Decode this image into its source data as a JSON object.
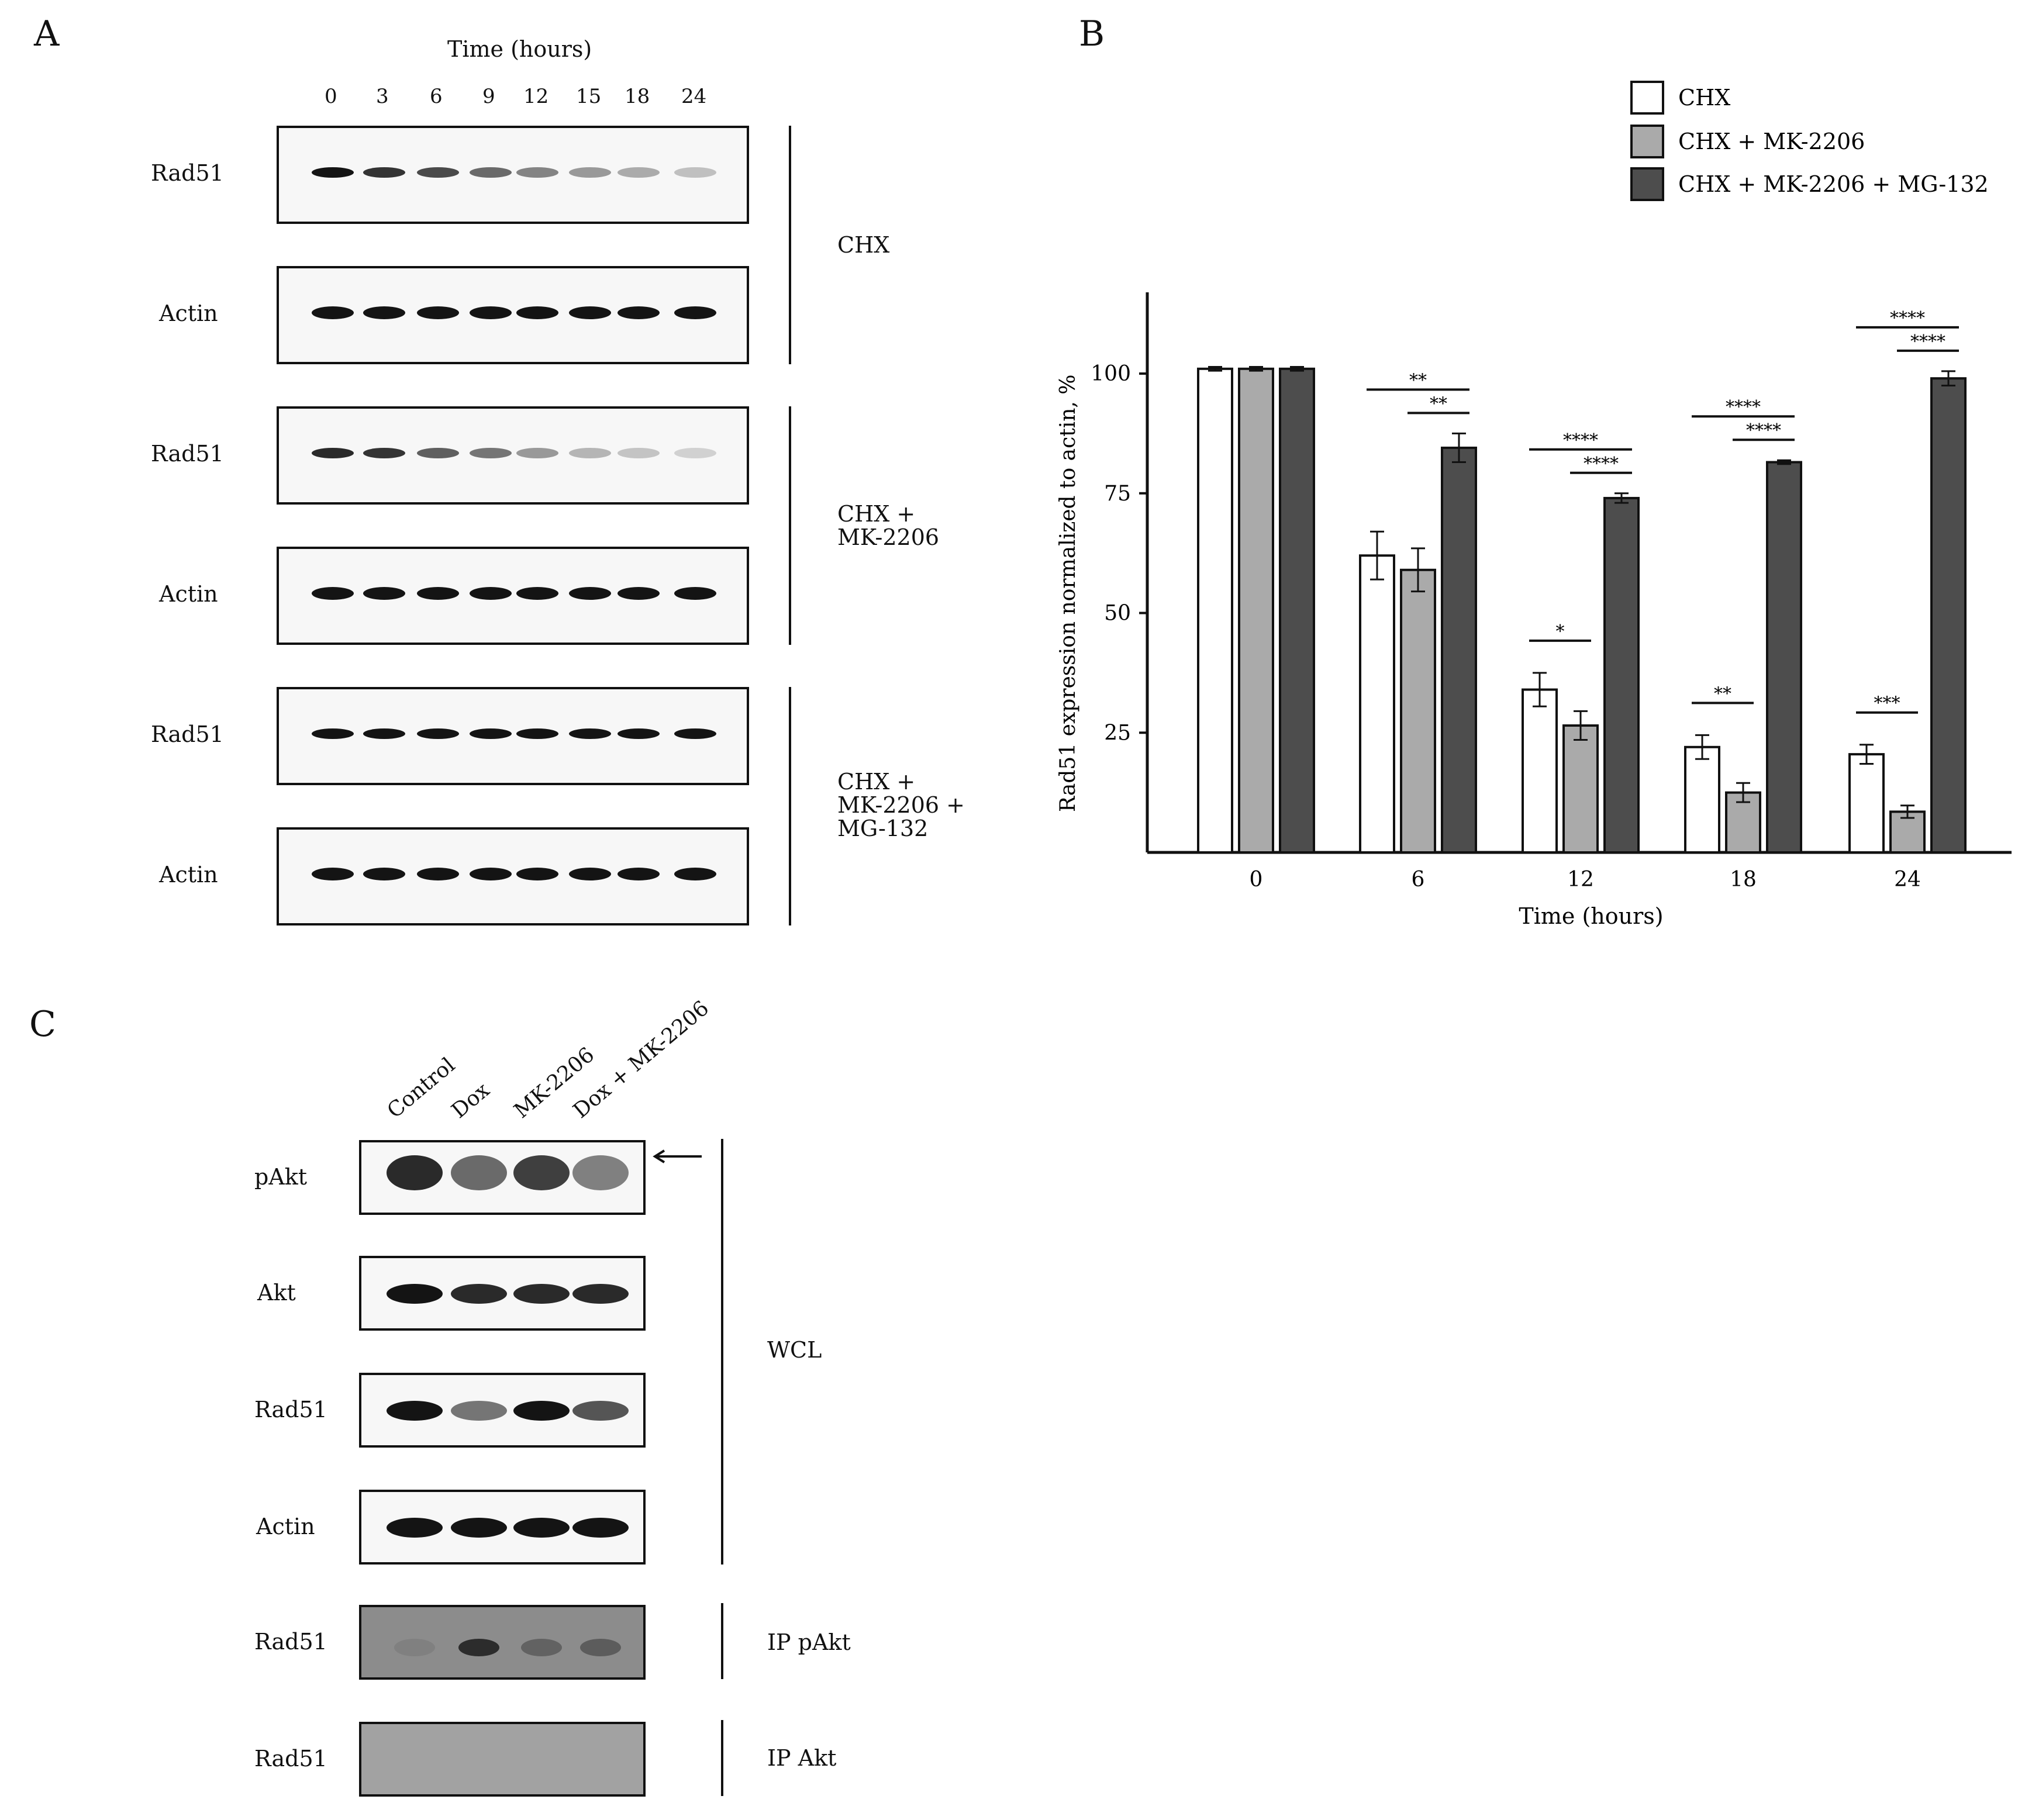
{
  "panel_a": {
    "letter": "A",
    "time_title": "Time (hours)",
    "time_points": [
      "0",
      "3",
      "6",
      "9",
      "12",
      "15",
      "18",
      "24"
    ],
    "groups": [
      {
        "rad51_label": "Rad51",
        "actin_label": "Actin",
        "treatment": "CHX",
        "rad51_intensity": [
          1.0,
          0.85,
          0.75,
          0.6,
          0.48,
          0.38,
          0.3,
          0.2
        ],
        "actin_intensity": [
          1,
          1,
          1,
          1,
          1,
          1,
          1,
          1
        ]
      },
      {
        "rad51_label": "Rad51",
        "actin_label": "Actin",
        "treatment": "CHX +\nMK-2206",
        "rad51_intensity": [
          0.9,
          0.85,
          0.65,
          0.55,
          0.38,
          0.25,
          0.18,
          0.12
        ],
        "actin_intensity": [
          1,
          1,
          1,
          1,
          1,
          1,
          1,
          1
        ]
      },
      {
        "rad51_label": "Rad51",
        "actin_label": "Actin",
        "treatment": "CHX +\nMK-2206 +\nMG-132",
        "rad51_intensity": [
          1,
          1,
          1,
          1,
          1,
          1,
          1,
          1
        ],
        "actin_intensity": [
          1,
          1,
          1,
          1,
          1,
          1,
          1,
          1
        ]
      }
    ]
  },
  "panel_b": {
    "letter": "B"
  },
  "chart_data": {
    "type": "bar",
    "xlabel": "Time (hours)",
    "ylabel": "Rad51 expression normalized to actin, %",
    "categories": [
      "0",
      "6",
      "12",
      "18",
      "24"
    ],
    "yticks": [
      25,
      50,
      75,
      100
    ],
    "ylim": [
      0,
      118
    ],
    "legend_position": "top-right",
    "series": [
      {
        "name": "CHX",
        "color": "#ffffff",
        "values": [
          101,
          62,
          34,
          22,
          20.5
        ],
        "errors": [
          0.4,
          5,
          3.5,
          2.5,
          2
        ]
      },
      {
        "name": "CHX + MK-2206",
        "color": "#aaaaaa",
        "values": [
          101,
          59,
          26.5,
          12.5,
          8.5
        ],
        "errors": [
          0.4,
          4.5,
          3,
          2,
          1.3
        ]
      },
      {
        "name": "CHX + MK-2206 + MG-132",
        "color": "#4d4d4d",
        "values": [
          101,
          84.5,
          74,
          81.5,
          99
        ],
        "errors": [
          0.4,
          3,
          1,
          0.4,
          1.5
        ]
      }
    ],
    "annotations": [
      {
        "category": 1,
        "from": 0,
        "to": 2,
        "label": "**",
        "level": 2
      },
      {
        "category": 1,
        "from": 1,
        "to": 2,
        "label": "**",
        "level": 1
      },
      {
        "category": 2,
        "from": 0,
        "to": 1,
        "label": "*",
        "level": 0
      },
      {
        "category": 2,
        "from": 0,
        "to": 2,
        "label": "****",
        "level": 2
      },
      {
        "category": 2,
        "from": 1,
        "to": 2,
        "label": "****",
        "level": 1
      },
      {
        "category": 3,
        "from": 0,
        "to": 1,
        "label": "**",
        "level": 0
      },
      {
        "category": 3,
        "from": 0,
        "to": 2,
        "label": "****",
        "level": 2
      },
      {
        "category": 3,
        "from": 1,
        "to": 2,
        "label": "****",
        "level": 1
      },
      {
        "category": 4,
        "from": 0,
        "to": 1,
        "label": "***",
        "level": 0
      },
      {
        "category": 4,
        "from": 0,
        "to": 2,
        "label": "****",
        "level": 2
      },
      {
        "category": 4,
        "from": 1,
        "to": 2,
        "label": "****",
        "level": 1
      }
    ]
  },
  "panel_c": {
    "letter": "C",
    "lanes": [
      "Control",
      "Dox",
      "MK-2206",
      "Dox + MK-2206"
    ],
    "rows": [
      {
        "label": "pAkt"
      },
      {
        "label": "Akt"
      },
      {
        "label": "Rad51"
      },
      {
        "label": "Actin"
      },
      {
        "label": "Rad51"
      },
      {
        "label": "Rad51"
      }
    ],
    "group_labels": {
      "wcl": "WCL",
      "ip_pakt": "IP pAkt",
      "ip_akt": "IP Akt"
    }
  }
}
